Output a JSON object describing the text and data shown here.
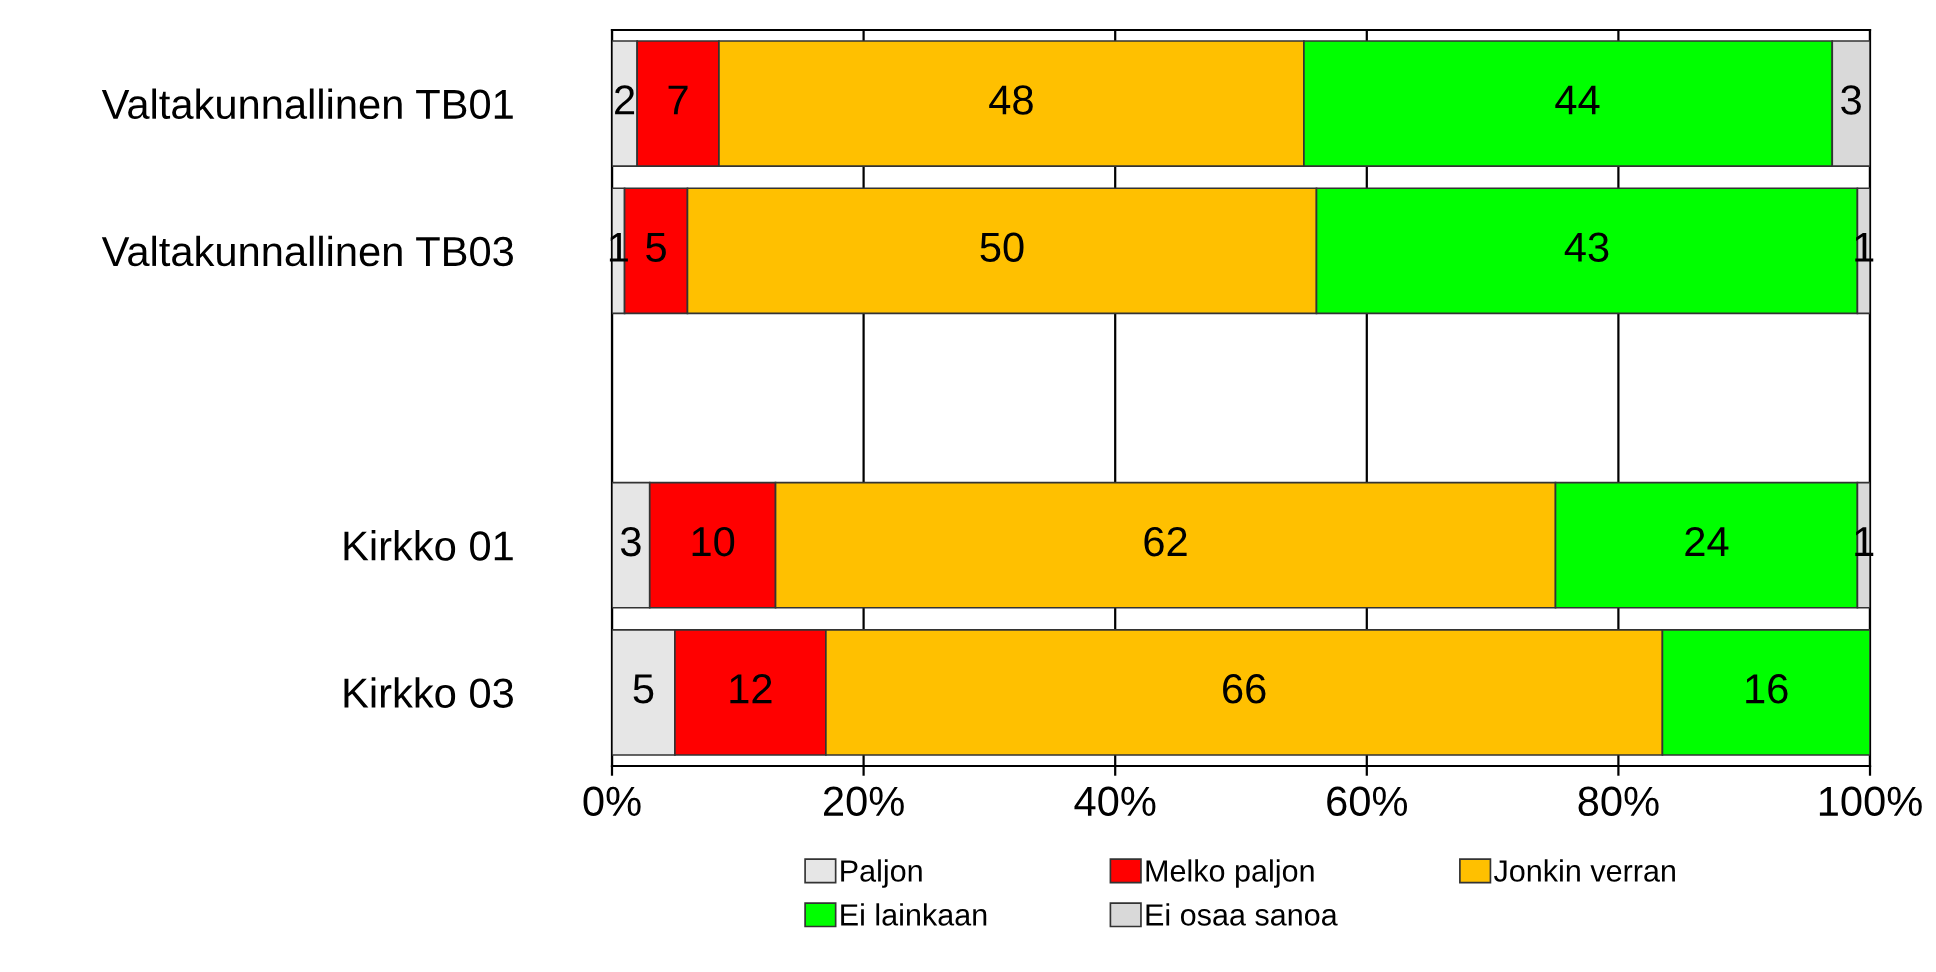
{
  "chart_data": {
    "type": "bar",
    "orientation": "horizontal",
    "stacked": true,
    "categories": [
      "Valtakunnallinen TB01",
      "Valtakunnallinen TB03",
      null,
      "Kirkko 01",
      "Kirkko 03"
    ],
    "series": [
      {
        "name": "Paljon",
        "color": "#e6e6e6",
        "values": [
          2,
          1,
          null,
          3,
          5
        ]
      },
      {
        "name": "Melko paljon",
        "color": "#ff0000",
        "values": [
          6.5,
          5,
          null,
          10,
          12
        ]
      },
      {
        "name": "Jonkin verran",
        "color": "#ffc000",
        "values": [
          46.5,
          50,
          null,
          62,
          66.5
        ]
      },
      {
        "name": "Ei lainkaan",
        "color": "#00ff00",
        "values": [
          42,
          43,
          null,
          24,
          16.5
        ]
      },
      {
        "name": "Ei osaa sanoa",
        "color": "#d9d9d9",
        "values": [
          3,
          1,
          null,
          1,
          null
        ]
      }
    ],
    "annotations": [
      {
        "text": "2",
        "x": 1,
        "y": "Valtakunnallinen TB01"
      },
      {
        "text": "7",
        "x": 5.25,
        "y": "Valtakunnallinen TB01"
      },
      {
        "text": "48",
        "x": 31.75,
        "y": "Valtakunnallinen TB01"
      },
      {
        "text": "44",
        "x": 76.75,
        "y": "Valtakunnallinen TB01"
      },
      {
        "text": "3",
        "x": 98.5,
        "y": "Valtakunnallinen TB01"
      },
      {
        "text": "1",
        "x": 0.5,
        "y": "Valtakunnallinen TB03"
      },
      {
        "text": "5",
        "x": 3.5,
        "y": "Valtakunnallinen TB03"
      },
      {
        "text": "50",
        "x": 31,
        "y": "Valtakunnallinen TB03"
      },
      {
        "text": "43",
        "x": 77.5,
        "y": "Valtakunnallinen TB03"
      },
      {
        "text": "1",
        "x": 99.5,
        "y": "Valtakunnallinen TB03"
      },
      {
        "text": "3",
        "x": 1.5,
        "y": "Kirkko 01"
      },
      {
        "text": "10",
        "x": 8,
        "y": "Kirkko 01"
      },
      {
        "text": "62",
        "x": 44,
        "y": "Kirkko 01"
      },
      {
        "text": "24",
        "x": 87,
        "y": "Kirkko 01"
      },
      {
        "text": "1",
        "x": 99.5,
        "y": "Kirkko 01"
      },
      {
        "text": "5",
        "x": 2.5,
        "y": "Kirkko 03"
      },
      {
        "text": "12",
        "x": 11,
        "y": "Kirkko 03"
      },
      {
        "text": "66",
        "x": 50.25,
        "y": "Kirkko 03"
      },
      {
        "text": "16",
        "x": 91.75,
        "y": "Kirkko 03"
      }
    ],
    "xlim": [
      0,
      100
    ],
    "xticks": [
      {
        "value": 0,
        "label": "0%"
      },
      {
        "value": 20,
        "label": "20%"
      },
      {
        "value": 40,
        "label": "40%"
      },
      {
        "value": 60,
        "label": "60%"
      },
      {
        "value": 80,
        "label": "80%"
      },
      {
        "value": 100,
        "label": "100%"
      }
    ],
    "grid": "x",
    "legend": "bottom"
  }
}
